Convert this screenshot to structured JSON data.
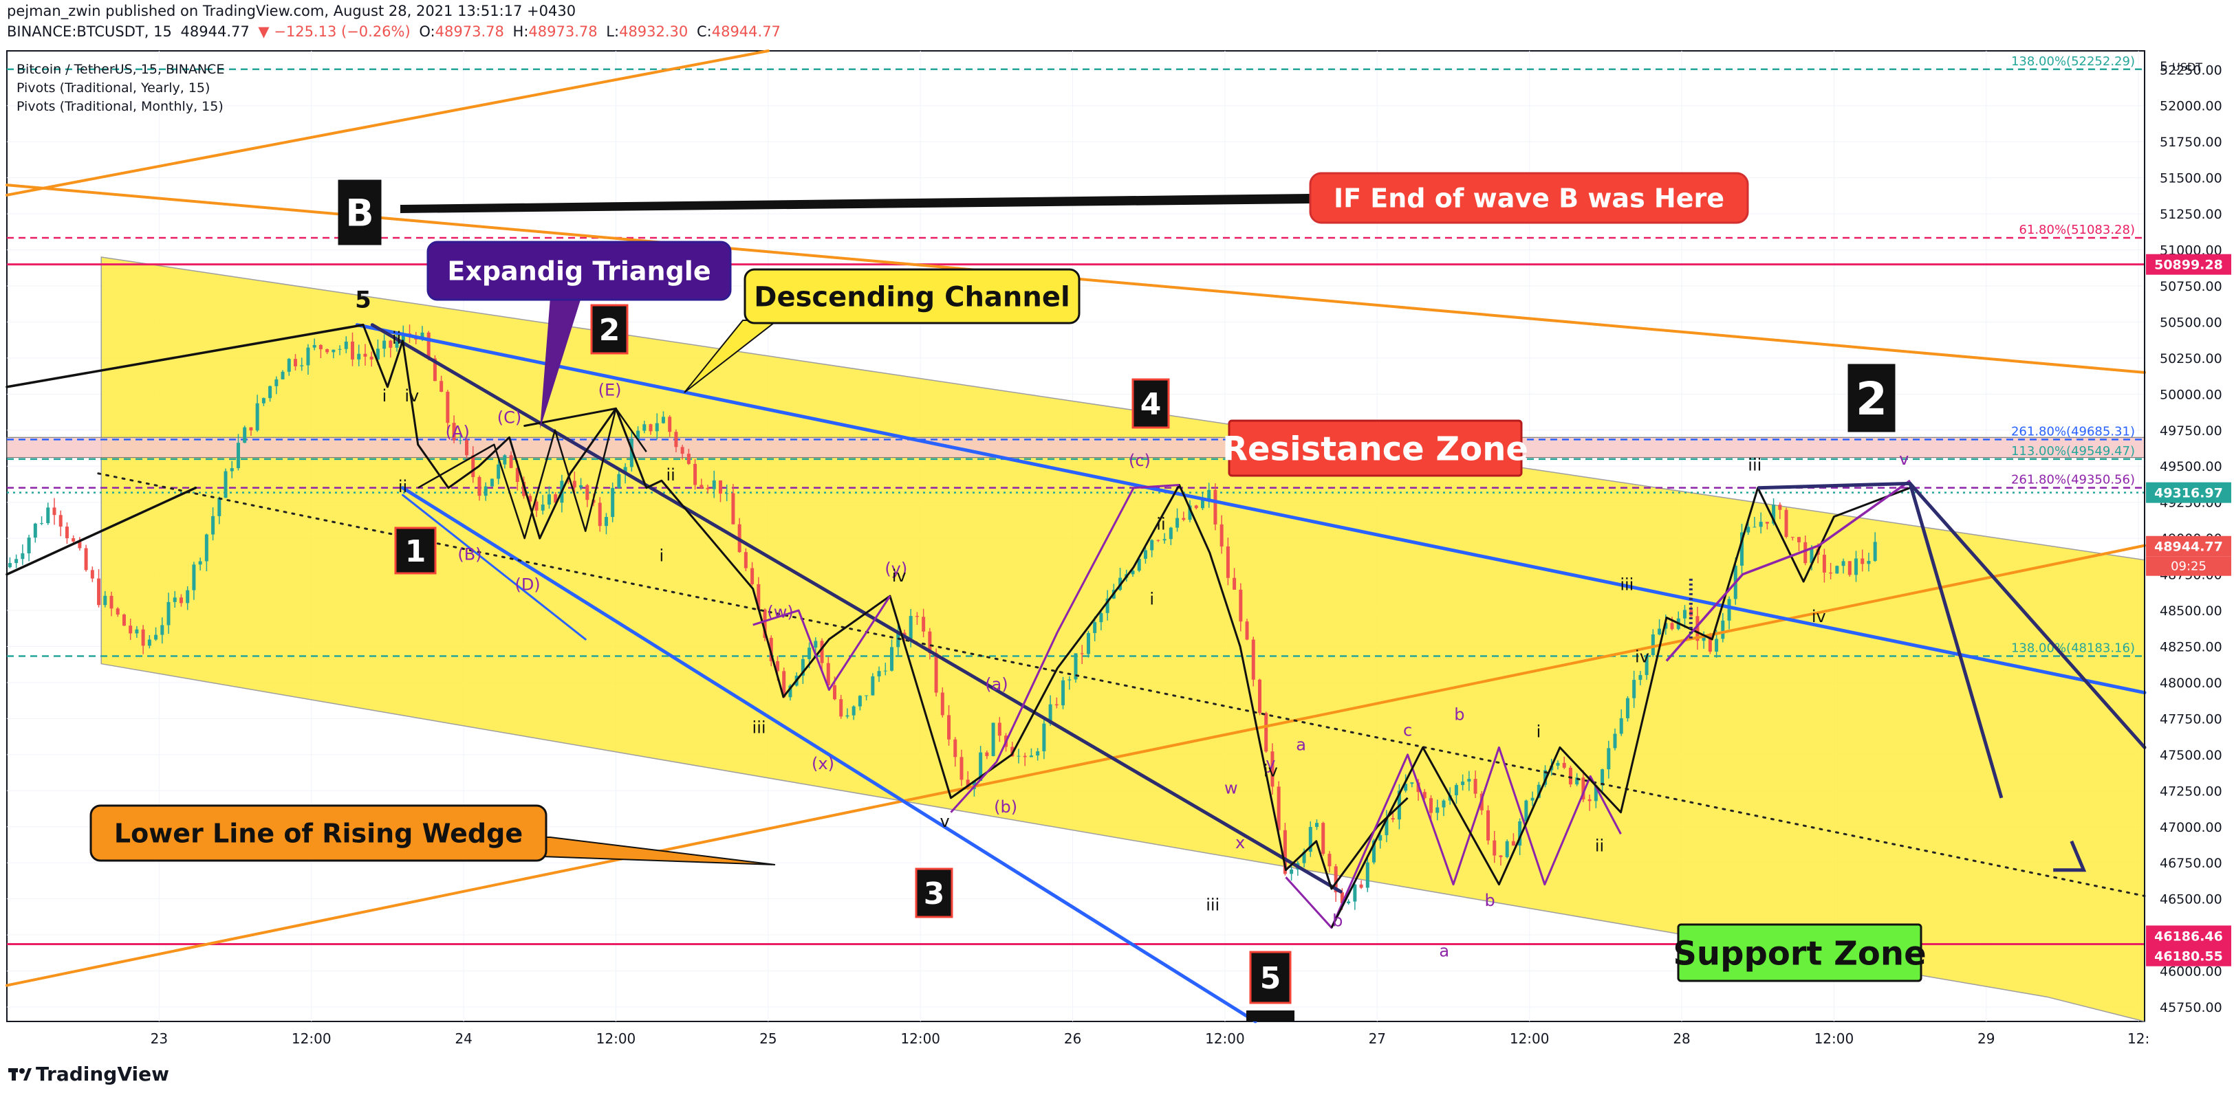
{
  "header": {
    "publisher_line": "pejman_zwin published on TradingView.com, August 28, 2021 13:51:17 +0430",
    "symbol": "BINANCE:BTCUSDT, 15",
    "last": "48944.77",
    "change": "▼ −125.13 (−0.26%)",
    "open_label": "O:",
    "open": "48973.78",
    "high_label": "H:",
    "high": "48973.78",
    "low_label": "L:",
    "low": "48932.30",
    "close_label": "C:",
    "close": "48944.77"
  },
  "legend": {
    "title": "Bitcoin / TetherUS, 15, BINANCE",
    "indicators": [
      "Pivots (Traditional, Yearly, 15)",
      "Pivots (Traditional, Monthly, 15)"
    ]
  },
  "footer": {
    "brand": "TradingView"
  },
  "colors": {
    "up": "#26a69a",
    "down": "#ef5350",
    "channel_fill": "#ffeb3b",
    "blue_line": "#2962ff",
    "orange_line": "#f7931a",
    "pink_line": "#e91e63",
    "purple": "#8e24aa",
    "teal": "#26a69a",
    "resistance_fill": "#f8c8c8"
  },
  "chart_data": {
    "type": "candlestick",
    "title": "Bitcoin / TetherUS, 15, BINANCE",
    "currency": "USDT",
    "x_ticks": [
      "23",
      "12:00",
      "24",
      "12:00",
      "25",
      "12:00",
      "26",
      "12:00",
      "27",
      "12:00",
      "28",
      "12:00",
      "29",
      "12:"
    ],
    "x_tick_times": [
      0.5,
      1.0,
      1.5,
      2.0,
      2.5,
      3.0,
      3.5,
      4.0,
      4.5,
      5.0,
      5.5,
      6.0,
      6.5,
      7.0
    ],
    "x_range_days": [
      0.0,
      7.02
    ],
    "y_ticks": [
      45750,
      46000,
      46250,
      46500,
      46750,
      47000,
      47250,
      47500,
      47750,
      48000,
      48250,
      48500,
      48750,
      49000,
      49250,
      49500,
      49750,
      50000,
      50250,
      50500,
      50750,
      51000,
      51250,
      51500,
      51750,
      52000,
      52250
    ],
    "y_range": [
      45650,
      52380
    ],
    "last_price": 48944.77,
    "last_price_countdown": "09:25",
    "price_tags": [
      {
        "value": 50899.28,
        "label": "50899.28",
        "color": "#e91e63"
      },
      {
        "value": 49316.97,
        "label": "49316.97",
        "color": "#26a69a"
      },
      {
        "value": 48944.77,
        "label": "48944.77",
        "color": "#ef5350"
      },
      {
        "value": 46186.46,
        "label": "46186.46",
        "color": "#e91e63"
      },
      {
        "value": 46180.55,
        "label": "46180.55",
        "color": "#e91e63"
      }
    ],
    "horizontal_levels": [
      {
        "value": 52252.29,
        "label": "138.00%(52252.29)",
        "color": "#26a69a",
        "style": "dashed"
      },
      {
        "value": 51083.28,
        "label": "61.80%(51083.28)",
        "color": "#e91e63",
        "style": "dashed"
      },
      {
        "value": 50899.28,
        "label": "",
        "color": "#e91e63",
        "style": "solid"
      },
      {
        "value": 49685.31,
        "label": "261.80%(49685.31)",
        "color": "#2962ff",
        "style": "dashed"
      },
      {
        "value": 49549.47,
        "label": "113.00%(49549.47)",
        "color": "#26a69a",
        "style": "dashed"
      },
      {
        "value": 49350.56,
        "label": "261.80%(49350.56)",
        "color": "#8e24aa",
        "style": "dashed"
      },
      {
        "value": 49316.97,
        "label": "",
        "color": "#26a69a",
        "style": "dotted"
      },
      {
        "value": 48183.16,
        "label": "138.00%(48183.16)",
        "color": "#26a69a",
        "style": "dashed"
      },
      {
        "value": 46186.46,
        "label": "",
        "color": "#e91e63",
        "style": "solid"
      }
    ],
    "price_path": [
      [
        0.0,
        48800
      ],
      [
        0.15,
        49250
      ],
      [
        0.3,
        48600
      ],
      [
        0.45,
        48250
      ],
      [
        0.6,
        48700
      ],
      [
        0.75,
        49600
      ],
      [
        0.9,
        50200
      ],
      [
        1.05,
        50350
      ],
      [
        1.2,
        50250
      ],
      [
        1.35,
        50450
      ],
      [
        1.45,
        49800
      ],
      [
        1.55,
        49350
      ],
      [
        1.65,
        49550
      ],
      [
        1.75,
        49150
      ],
      [
        1.85,
        49450
      ],
      [
        1.95,
        49100
      ],
      [
        2.05,
        49650
      ],
      [
        2.15,
        49850
      ],
      [
        2.25,
        49450
      ],
      [
        2.35,
        49350
      ],
      [
        2.45,
        48600
      ],
      [
        2.55,
        47950
      ],
      [
        2.65,
        48300
      ],
      [
        2.75,
        47700
      ],
      [
        2.9,
        48200
      ],
      [
        3.0,
        48500
      ],
      [
        3.05,
        48000
      ],
      [
        3.15,
        47250
      ],
      [
        3.25,
        47700
      ],
      [
        3.35,
        47400
      ],
      [
        3.45,
        47900
      ],
      [
        3.6,
        48500
      ],
      [
        3.75,
        49000
      ],
      [
        3.85,
        49100
      ],
      [
        3.95,
        49300
      ],
      [
        4.0,
        48800
      ],
      [
        4.05,
        48500
      ],
      [
        4.1,
        47900
      ],
      [
        4.2,
        46700
      ],
      [
        4.3,
        47000
      ],
      [
        4.4,
        46400
      ],
      [
        4.5,
        46900
      ],
      [
        4.6,
        47300
      ],
      [
        4.7,
        47100
      ],
      [
        4.8,
        47400
      ],
      [
        4.9,
        46700
      ],
      [
        5.0,
        47200
      ],
      [
        5.1,
        47500
      ],
      [
        5.2,
        47100
      ],
      [
        5.3,
        47800
      ],
      [
        5.4,
        48300
      ],
      [
        5.5,
        48500
      ],
      [
        5.6,
        48200
      ],
      [
        5.7,
        49000
      ],
      [
        5.8,
        49200
      ],
      [
        5.9,
        48900
      ],
      [
        6.0,
        48750
      ],
      [
        6.1,
        48850
      ],
      [
        6.15,
        48945
      ]
    ],
    "annotations": [
      {
        "text": "B",
        "kind": "black-box"
      },
      {
        "text": "IF End of wave B was Here",
        "kind": "red-callout"
      },
      {
        "text": "Expandig Triangle",
        "kind": "purple-callout"
      },
      {
        "text": "Descending Channel",
        "kind": "yellow-callout"
      },
      {
        "text": "Resistance Zone",
        "kind": "red-label"
      },
      {
        "text": "Support Zone",
        "kind": "green-label"
      },
      {
        "text": "Lower Line of Rising Wedge",
        "kind": "orange-callout"
      },
      {
        "text": "1",
        "kind": "black-box"
      },
      {
        "text": "2",
        "kind": "black-box"
      },
      {
        "text": "3",
        "kind": "black-box"
      },
      {
        "text": "4",
        "kind": "black-box"
      },
      {
        "text": "5",
        "kind": "black-box"
      },
      {
        "text": "2",
        "kind": "black-box-big"
      }
    ],
    "wave_labels": [
      "5",
      "ii",
      "i",
      "iv",
      "ii",
      "v",
      "(A)",
      "(B)",
      "(C)",
      "(D)",
      "(E)",
      "ii",
      "i",
      "iii",
      "(w)",
      "(x)",
      "(y)",
      "iv",
      "v",
      "(a)",
      "(b)",
      "(c)",
      "ii",
      "i",
      "iii",
      "w",
      "x",
      "y",
      "iv",
      "a",
      "b",
      "c",
      "a",
      "b",
      "b",
      "i",
      "ii",
      "iii",
      "iv",
      "iii",
      "iv",
      "v"
    ]
  }
}
